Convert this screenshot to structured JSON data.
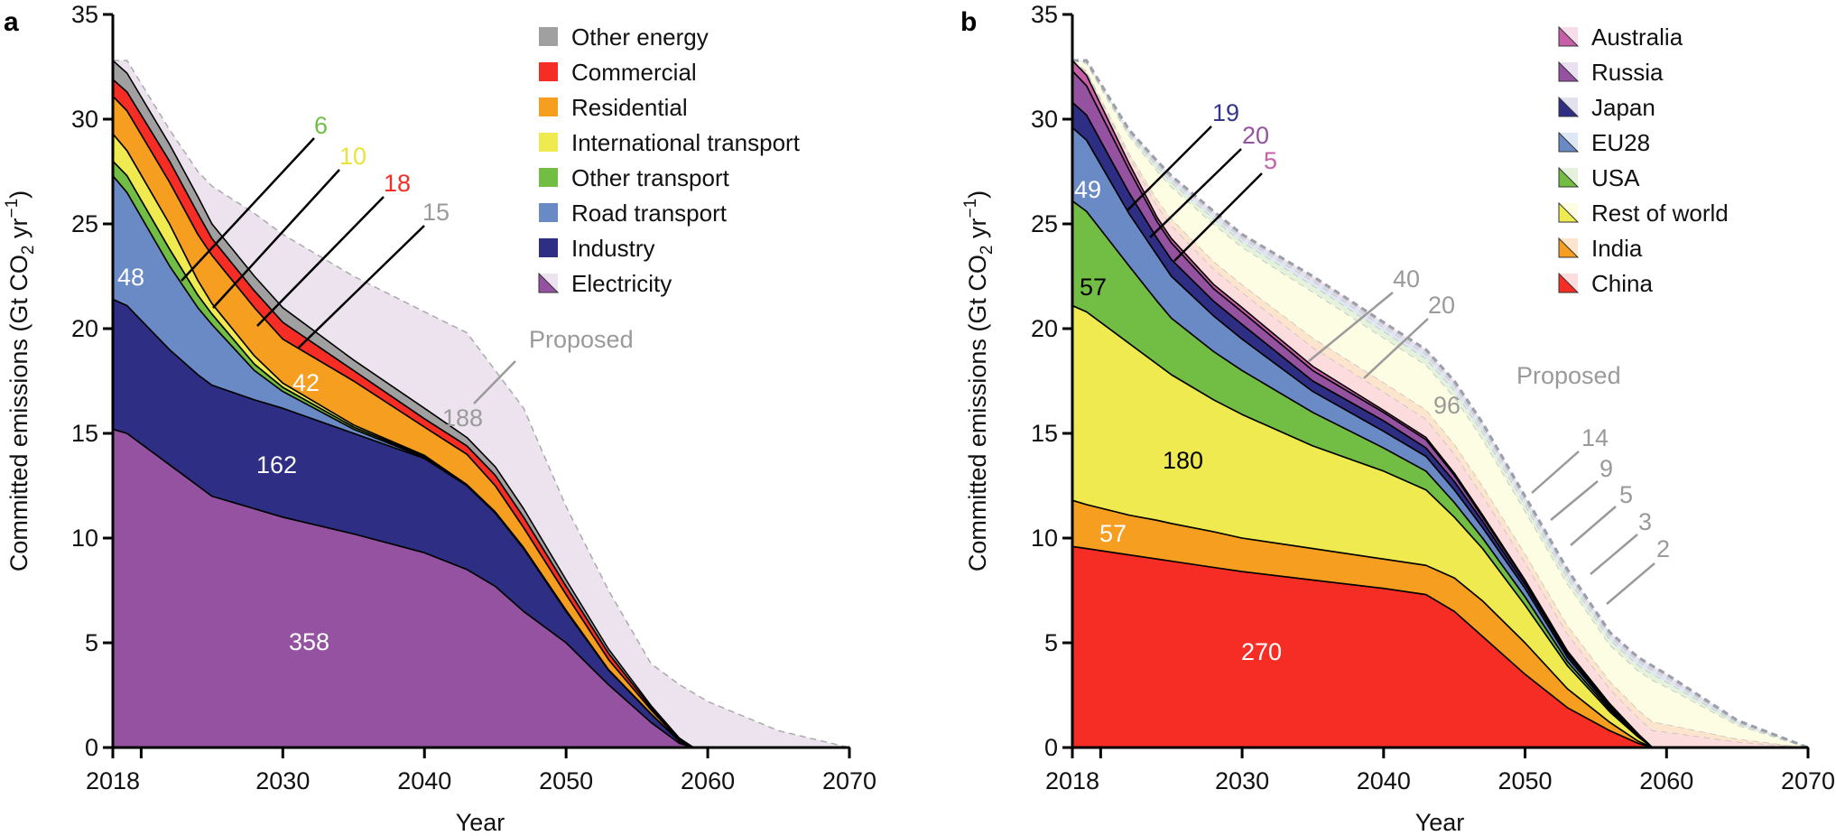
{
  "chart_data": [
    {
      "panel": "a",
      "type": "area",
      "stacked": true,
      "xlabel": "Year",
      "ylabel": {
        "main": "Committed emissions (Gt CO",
        "sub": "2",
        "mid": " yr",
        "sup": "−1",
        "end": ")"
      },
      "xlim": [
        2018,
        2070
      ],
      "ylim": [
        0,
        35
      ],
      "xticks": [
        2018,
        2030,
        2040,
        2050,
        2060,
        2070
      ],
      "xminor_ticks": [
        2020
      ],
      "yticks": [
        0,
        5,
        10,
        15,
        20,
        25,
        30,
        35
      ],
      "grid": false,
      "legend": "top-right",
      "x": [
        2018,
        2019,
        2022,
        2024,
        2025,
        2028,
        2030,
        2035,
        2040,
        2043,
        2045,
        2047,
        2050,
        2053,
        2056,
        2058,
        2059,
        2060,
        2065,
        2070
      ],
      "series": [
        {
          "name": "Electricity",
          "color": "#9452a0",
          "proposed_color": "#ece3ef",
          "total": "358",
          "values": [
            15.2,
            15.0,
            13.5,
            12.5,
            12.0,
            11.4,
            11.0,
            10.2,
            9.3,
            8.5,
            7.7,
            6.5,
            5.0,
            3.0,
            1.2,
            0.2,
            0,
            0,
            0,
            0
          ]
        },
        {
          "name": "Industry",
          "color": "#2e2e84",
          "total": "162",
          "values": [
            6.2,
            6.1,
            5.5,
            5.3,
            5.3,
            5.2,
            5.2,
            4.8,
            4.5,
            4.0,
            3.5,
            3.0,
            1.5,
            0.7,
            0.4,
            0.1,
            0,
            0,
            0,
            0
          ]
        },
        {
          "name": "Road transport",
          "color": "#6a8ac6",
          "total": "48",
          "values": [
            5.9,
            5.4,
            4.0,
            3.2,
            2.9,
            1.4,
            0.8,
            0.2,
            0.05,
            0,
            0,
            0,
            0,
            0,
            0,
            0,
            0,
            0,
            0,
            0
          ]
        },
        {
          "name": "Other transport",
          "color": "#72be45",
          "total": "6",
          "label_color": "#72be45",
          "values": [
            0.7,
            0.8,
            0.8,
            0.6,
            0.5,
            0.3,
            0.2,
            0.1,
            0.05,
            0,
            0,
            0,
            0,
            0,
            0,
            0,
            0,
            0,
            0,
            0
          ]
        },
        {
          "name": "International transport",
          "color": "#eeea50",
          "total": "10",
          "label_color": "#e8e43a",
          "values": [
            1.3,
            1.2,
            1.2,
            0.7,
            0.5,
            0.4,
            0.2,
            0.1,
            0.05,
            0.05,
            0.05,
            0.05,
            0.05,
            0.02,
            0.01,
            0,
            0,
            0,
            0,
            0
          ]
        },
        {
          "name": "Residential",
          "color": "#f59e20",
          "total": "42",
          "values": [
            1.8,
            1.9,
            2.0,
            2.2,
            2.3,
            2.3,
            2.1,
            2.1,
            1.35,
            1.45,
            1.25,
            0.95,
            0.75,
            0.48,
            0.19,
            0.05,
            0,
            0,
            0,
            0
          ]
        },
        {
          "name": "Commercial",
          "color": "#f52d24",
          "total": "18",
          "label_color": "#f52d24",
          "values": [
            0.8,
            0.9,
            1.0,
            1.0,
            0.8,
            0.8,
            0.8,
            0.5,
            0.4,
            0.4,
            0.5,
            0.5,
            0.4,
            0.3,
            0.1,
            0.05,
            0,
            0,
            0,
            0
          ]
        },
        {
          "name": "Other energy",
          "color": "#a0a0a0",
          "total": "15",
          "label_color": "#9a9a9a",
          "values": [
            0.9,
            0.9,
            0.8,
            0.8,
            0.7,
            0.7,
            0.7,
            0.5,
            0.5,
            0.4,
            0.4,
            0.4,
            0.3,
            0.2,
            0.1,
            0.05,
            0,
            0,
            0,
            0
          ]
        }
      ],
      "proposed": {
        "label": "Proposed",
        "total": "188",
        "color": "#ece3ef",
        "label_color": "#9a9a9a",
        "values": [
          0,
          0.6,
          0.7,
          1.2,
          1.8,
          3.0,
          3.5,
          4.0,
          4.6,
          5.0,
          4.6,
          4.8,
          3.5,
          2.8,
          2.0,
          2.55,
          2.6,
          2.2,
          0.8,
          0
        ]
      }
    },
    {
      "panel": "b",
      "type": "area",
      "stacked": true,
      "xlabel": "Year",
      "ylabel": {
        "main": "Committed emissions (Gt CO",
        "sub": "2",
        "mid": " yr",
        "sup": "−1",
        "end": ")"
      },
      "xlim": [
        2018,
        2070
      ],
      "ylim": [
        0,
        35
      ],
      "xticks": [
        2018,
        2030,
        2040,
        2050,
        2060,
        2070
      ],
      "xminor_ticks": [
        2020
      ],
      "yticks": [
        0,
        5,
        10,
        15,
        20,
        25,
        30,
        35
      ],
      "grid": false,
      "legend": "top-right",
      "x": [
        2018,
        2019,
        2022,
        2024,
        2025,
        2028,
        2030,
        2035,
        2040,
        2043,
        2045,
        2047,
        2050,
        2053,
        2056,
        2058,
        2059,
        2060,
        2065,
        2070
      ],
      "series": [
        {
          "name": "China",
          "color": "#f52d24",
          "proposed_color": "#fcdcdc",
          "total": "270",
          "proposed_total": "40",
          "values": [
            9.6,
            9.5,
            9.2,
            9.0,
            8.9,
            8.6,
            8.4,
            8.0,
            7.6,
            7.3,
            6.5,
            5.3,
            3.5,
            1.9,
            0.8,
            0.2,
            0,
            0,
            0,
            0
          ]
        },
        {
          "name": "India",
          "color": "#f59e20",
          "proposed_color": "#fde4cc",
          "total": "57",
          "proposed_total": "20",
          "values": [
            2.2,
            2.1,
            1.9,
            1.85,
            1.8,
            1.7,
            1.6,
            1.5,
            1.4,
            1.4,
            1.6,
            1.7,
            1.5,
            0.9,
            0.4,
            0.1,
            0,
            0,
            0,
            0
          ]
        },
        {
          "name": "Rest of world",
          "color": "#eeea50",
          "proposed_color": "#fdfde4",
          "total": "180",
          "proposed_total": "96",
          "values": [
            9.3,
            9.2,
            8.2,
            7.45,
            7.1,
            6.3,
            5.9,
            4.9,
            4.2,
            3.6,
            2.9,
            2.5,
            1.8,
            1.1,
            0.5,
            0.2,
            0,
            0,
            0,
            0
          ]
        },
        {
          "name": "USA",
          "color": "#72be45",
          "proposed_color": "#e4f2dc",
          "total": "57",
          "proposed_total": "14",
          "values": [
            5.0,
            4.8,
            3.7,
            3.0,
            2.7,
            2.3,
            2.1,
            1.6,
            1.1,
            0.9,
            0.7,
            0.5,
            0.4,
            0.2,
            0.1,
            0.05,
            0,
            0,
            0,
            0
          ]
        },
        {
          "name": "EU28",
          "color": "#6a8ac6",
          "proposed_color": "#dfe7f4",
          "total": "49",
          "proposed_total": "9",
          "values": [
            3.5,
            3.4,
            2.5,
            2.2,
            2.0,
            1.7,
            1.5,
            1.0,
            0.8,
            0.7,
            0.6,
            0.5,
            0.4,
            0.2,
            0.1,
            0.05,
            0,
            0,
            0,
            0
          ]
        },
        {
          "name": "Japan",
          "color": "#2e2e84",
          "proposed_color": "#e2e2ee",
          "total": "19",
          "proposed_total": "5",
          "label_color": "#34348c",
          "values": [
            1.2,
            1.2,
            1.0,
            0.8,
            0.8,
            0.7,
            0.7,
            0.5,
            0.5,
            0.4,
            0.4,
            0.3,
            0.2,
            0.15,
            0.1,
            0.02,
            0,
            0,
            0,
            0
          ]
        },
        {
          "name": "Russia",
          "color": "#9452a0",
          "proposed_color": "#ebe0f0",
          "total": "20",
          "proposed_total": "3",
          "label_color": "#9452a0",
          "values": [
            1.5,
            1.4,
            1.1,
            0.8,
            0.8,
            0.6,
            0.6,
            0.5,
            0.4,
            0.4,
            0.3,
            0.2,
            0.15,
            0.1,
            0.05,
            0.02,
            0,
            0,
            0,
            0
          ]
        },
        {
          "name": "Australia",
          "color": "#c75fa8",
          "proposed_color": "#f7dcea",
          "total": "5",
          "proposed_total": "2",
          "label_color": "#c75fa8",
          "values": [
            0.5,
            0.5,
            0.3,
            0.2,
            0.2,
            0.2,
            0.2,
            0.2,
            0.1,
            0.1,
            0.1,
            0.1,
            0.05,
            0.05,
            0.03,
            0.01,
            0,
            0,
            0,
            0
          ]
        }
      ],
      "proposed": {
        "label": "Proposed",
        "label_color": "#9a9a9a",
        "values": [
          0,
          0.7,
          1.6,
          2.7,
          3.0,
          3.5,
          3.5,
          4.3,
          4.2,
          4.2,
          4.4,
          4.4,
          4.0,
          3.9,
          3.42,
          3.65,
          3.9,
          3.5,
          1.3,
          0
        ]
      }
    }
  ]
}
